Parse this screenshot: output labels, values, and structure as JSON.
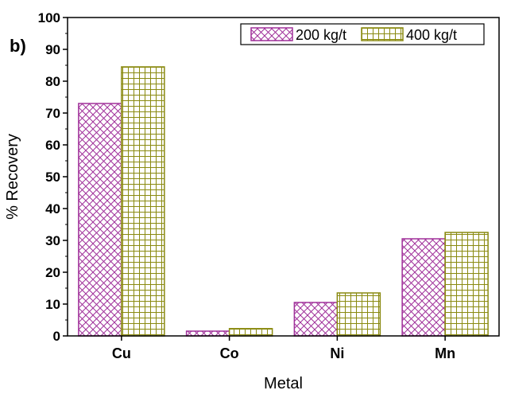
{
  "panel_label": "b)",
  "chart_data": {
    "type": "bar",
    "categories": [
      "Cu",
      "Co",
      "Ni",
      "Mn"
    ],
    "series": [
      {
        "name": "200 kg/t",
        "values": [
          73,
          1.5,
          10.5,
          30.5
        ],
        "color": "#a0309a",
        "pattern": "crosshatch-diagonal"
      },
      {
        "name": "400 kg/t",
        "values": [
          84.5,
          2.3,
          13.5,
          32.5
        ],
        "color": "#8a8a10",
        "pattern": "grid"
      }
    ],
    "xlabel": "Metal",
    "ylabel": "% Recovery",
    "ylim": [
      0,
      100
    ],
    "yticks": [
      0,
      10,
      20,
      30,
      40,
      50,
      60,
      70,
      80,
      90,
      100
    ],
    "legend_position": "top-right",
    "grid": false
  }
}
